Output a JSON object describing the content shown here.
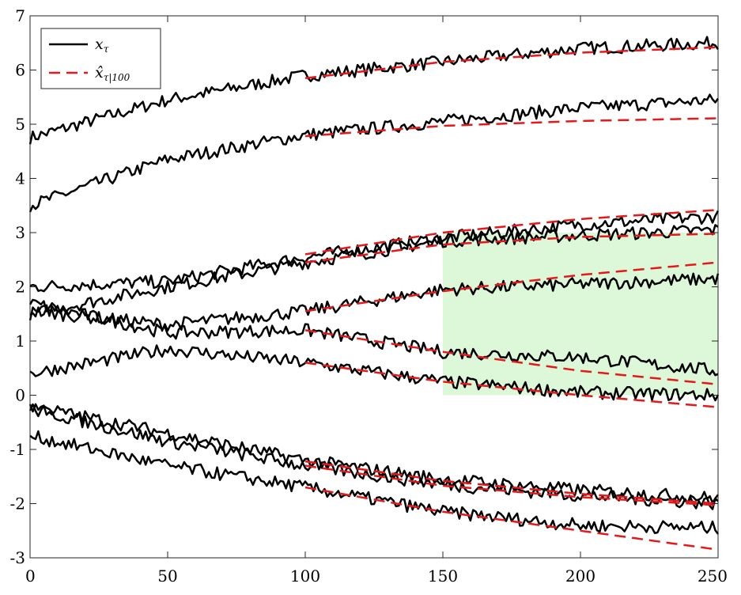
{
  "chart_data": {
    "type": "line",
    "xlim": [
      0,
      250
    ],
    "ylim": [
      -3,
      7
    ],
    "x_ticks": [
      0,
      50,
      100,
      150,
      200,
      250
    ],
    "y_ticks": [
      -3,
      -2,
      -1,
      0,
      1,
      2,
      3,
      4,
      5,
      6,
      7
    ],
    "x_tick_labels": [
      "0",
      "50",
      "100",
      "150",
      "200",
      "250"
    ],
    "y_tick_labels": [
      "-3",
      "-2",
      "-1",
      "0",
      "1",
      "2",
      "3",
      "4",
      "5",
      "6",
      "7"
    ],
    "legend": {
      "position": "top-left",
      "entries": [
        {
          "label": "x",
          "subscript": "τ",
          "style": "solid",
          "color": "#000000"
        },
        {
          "label": "x̂",
          "subscript": "τ|100",
          "style": "dashed",
          "color": "#e31a1c"
        }
      ]
    },
    "shaded_region": {
      "x": [
        150,
        250
      ],
      "y": [
        0,
        3.0
      ],
      "color": "#d9f7d4"
    },
    "noise_amplitude": 0.12,
    "series": [
      {
        "observed": {
          "x": [
            0,
            50,
            100,
            150,
            200,
            250
          ],
          "y": [
            4.75,
            5.45,
            5.9,
            6.15,
            6.4,
            6.5
          ]
        },
        "forecast": {
          "x": [
            100,
            150,
            200,
            250
          ],
          "y": [
            5.85,
            6.15,
            6.32,
            6.42
          ]
        }
      },
      {
        "observed": {
          "x": [
            0,
            50,
            100,
            150,
            200,
            250
          ],
          "y": [
            3.5,
            4.35,
            4.8,
            5.05,
            5.3,
            5.45
          ]
        },
        "forecast": {
          "x": [
            100,
            150,
            200,
            250
          ],
          "y": [
            4.78,
            4.97,
            5.06,
            5.11
          ]
        }
      },
      {
        "observed": {
          "x": [
            0,
            50,
            100,
            150,
            200,
            250
          ],
          "y": [
            2.0,
            2.1,
            2.55,
            2.9,
            3.15,
            3.3
          ]
        },
        "forecast": {
          "x": [
            100,
            150,
            200,
            250
          ],
          "y": [
            2.6,
            3.0,
            3.25,
            3.42
          ]
        }
      },
      {
        "observed": {
          "x": [
            0,
            50,
            100,
            150,
            200,
            250
          ],
          "y": [
            1.5,
            2.0,
            2.45,
            2.85,
            2.95,
            3.05
          ]
        },
        "forecast": {
          "x": [
            100,
            150,
            200,
            250
          ],
          "y": [
            2.45,
            2.78,
            2.92,
            2.98
          ]
        }
      },
      {
        "observed": {
          "x": [
            0,
            50,
            100,
            150,
            200,
            250
          ],
          "y": [
            1.55,
            1.3,
            1.55,
            1.95,
            2.05,
            2.15
          ]
        },
        "forecast": {
          "x": [
            100,
            150,
            200,
            250
          ],
          "y": [
            1.55,
            1.92,
            2.22,
            2.45
          ]
        }
      },
      {
        "observed": {
          "x": [
            0,
            50,
            100,
            150,
            200,
            250
          ],
          "y": [
            1.7,
            1.15,
            1.2,
            0.8,
            0.7,
            0.45
          ]
        },
        "forecast": {
          "x": [
            100,
            150,
            200,
            250
          ],
          "y": [
            1.2,
            0.8,
            0.45,
            0.2
          ]
        }
      },
      {
        "observed": {
          "x": [
            0,
            50,
            100,
            150,
            200,
            250
          ],
          "y": [
            0.4,
            0.85,
            0.6,
            0.25,
            0.05,
            0.0
          ]
        },
        "forecast": {
          "x": [
            100,
            150,
            200,
            250
          ],
          "y": [
            0.6,
            0.25,
            0.0,
            -0.22
          ]
        }
      },
      {
        "observed": {
          "x": [
            0,
            50,
            100,
            150,
            200,
            250
          ],
          "y": [
            -0.2,
            -0.7,
            -1.2,
            -1.55,
            -1.75,
            -1.9
          ]
        },
        "forecast": {
          "x": [
            100,
            150,
            200,
            250
          ],
          "y": [
            -1.22,
            -1.58,
            -1.82,
            -2.0
          ]
        }
      },
      {
        "observed": {
          "x": [
            0,
            50,
            100,
            150,
            200,
            250
          ],
          "y": [
            -0.25,
            -0.85,
            -1.3,
            -1.65,
            -1.85,
            -2.0
          ]
        },
        "forecast": {
          "x": [
            100,
            150,
            200,
            250
          ],
          "y": [
            -1.3,
            -1.67,
            -1.88,
            -2.03
          ]
        }
      },
      {
        "observed": {
          "x": [
            0,
            50,
            100,
            150,
            200,
            250
          ],
          "y": [
            -0.75,
            -1.3,
            -1.7,
            -2.15,
            -2.4,
            -2.45
          ]
        },
        "forecast": {
          "x": [
            100,
            150,
            200,
            250
          ],
          "y": [
            -1.7,
            -2.15,
            -2.5,
            -2.85
          ]
        }
      }
    ]
  }
}
